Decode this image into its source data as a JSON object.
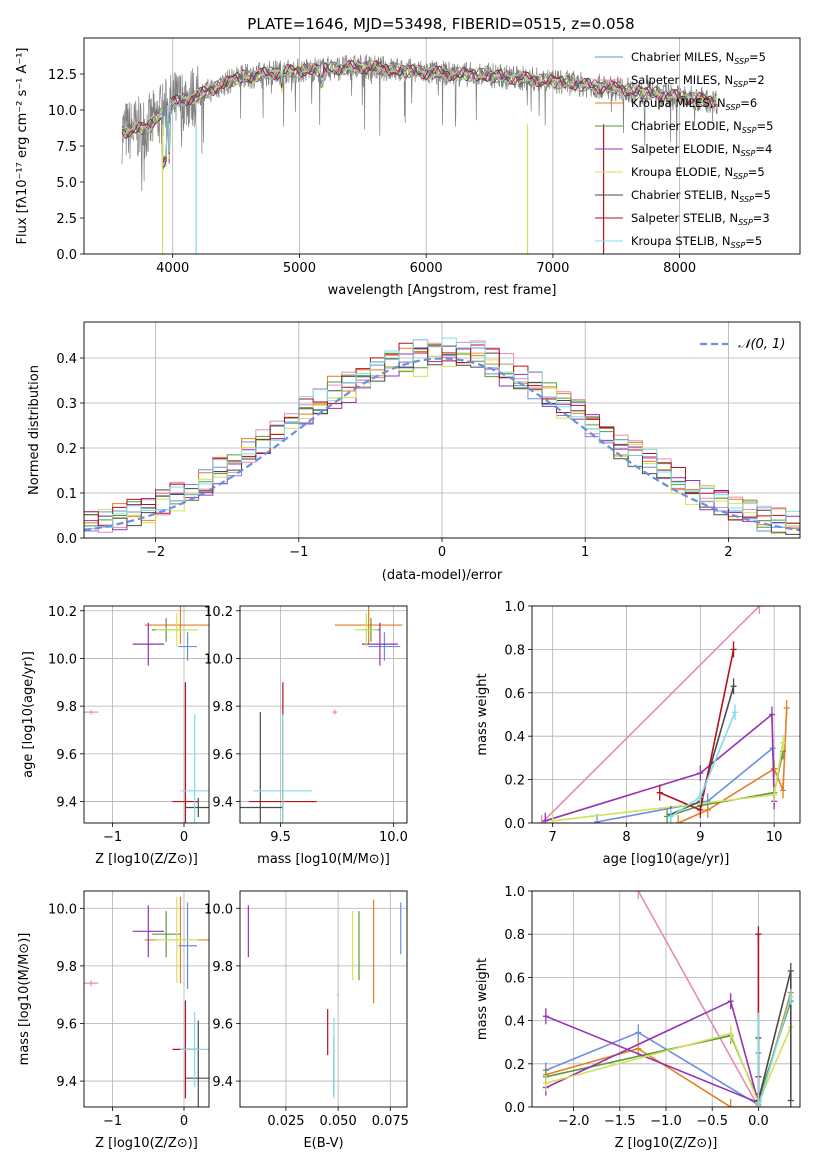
{
  "figure_title": "PLATE=1646, MJD=53498, FIBERID=0515, z=0.058",
  "colors": {
    "Chabrier MILES": "#6a8fdf",
    "Salpeter MILES": "#e88aba",
    "Kroupa MILES": "#e67e22",
    "Chabrier ELODIE": "#5b9a3c",
    "Salpeter ELODIE": "#9433b3",
    "Kroupa ELODIE": "#d4e05a",
    "Chabrier STELIB": "#4a4a4a",
    "Salpeter STELIB": "#b5121b",
    "Kroupa STELIB": "#80dce6",
    "data": "#808080"
  },
  "chart_data": [
    {
      "type": "line",
      "title": "PLATE=1646, MJD=53498, FIBERID=0515, z=0.058",
      "xlabel": "wavelength [Angstrom, rest frame]",
      "ylabel": "Flux [fλ10⁻¹⁷ erg cm⁻² s⁻¹ A⁻¹]",
      "xlim": [
        3300,
        8950
      ],
      "ylim": [
        0,
        15
      ],
      "xticks": [
        "4000",
        "5000",
        "6000",
        "7000",
        "8000"
      ],
      "yticks": [
        "0.0",
        "2.5",
        "5.0",
        "7.5",
        "10.0",
        "12.5"
      ],
      "legend_position": "upper-right",
      "series": [
        {
          "name": "Chabrier MILES, N_SSP=5",
          "label_main": "Chabrier MILES, N",
          "label_sub": "SSP",
          "label_end": "=5"
        },
        {
          "name": "Salpeter MILES, N_SSP=2",
          "label_main": "Salpeter MILES, N",
          "label_sub": "SSP",
          "label_end": "=2"
        },
        {
          "name": "Kroupa MILES, N_SSP=6",
          "label_main": "Kroupa MILES, N",
          "label_sub": "SSP",
          "label_end": "=6"
        },
        {
          "name": "Chabrier ELODIE, N_SSP=5",
          "label_main": "Chabrier ELODIE, N",
          "label_sub": "SSP",
          "label_end": "=5"
        },
        {
          "name": "Salpeter ELODIE, N_SSP=4",
          "label_main": "Salpeter ELODIE, N",
          "label_sub": "SSP",
          "label_end": "=4"
        },
        {
          "name": "Kroupa ELODIE, N_SSP=5",
          "label_main": "Kroupa ELODIE, N",
          "label_sub": "SSP",
          "label_end": "=5"
        },
        {
          "name": "Chabrier STELIB, N_SSP=5",
          "label_main": "Chabrier STELIB, N",
          "label_sub": "SSP",
          "label_end": "=5"
        },
        {
          "name": "Salpeter STELIB, N_SSP=3",
          "label_main": "Salpeter STELIB, N",
          "label_sub": "SSP",
          "label_end": "=3"
        },
        {
          "name": "Kroupa STELIB, N_SSP=5",
          "label_main": "Kroupa STELIB, N",
          "label_sub": "SSP",
          "label_end": "=5"
        }
      ],
      "spectrum_shape": {
        "x": [
          3600,
          3800,
          4000,
          4200,
          4500,
          4800,
          5100,
          5500,
          6000,
          6500,
          7000,
          7500,
          8000,
          8300
        ],
        "y": [
          8.5,
          8.8,
          10.5,
          11.0,
          12.2,
          12.6,
          12.8,
          13.0,
          12.6,
          12.4,
          12.0,
          11.5,
          10.9,
          10.6
        ]
      }
    },
    {
      "type": "bar",
      "title": "",
      "xlabel": "(data-model)/error",
      "ylabel": "Normed distribution",
      "xlim": [
        -2.5,
        2.5
      ],
      "ylim": [
        0,
        0.48
      ],
      "xticks": [
        "−2",
        "−1",
        "0",
        "1",
        "2"
      ],
      "yticks": [
        "0.0",
        "0.1",
        "0.2",
        "0.3",
        "0.4"
      ],
      "legend_position": "upper-right",
      "legend_label": "𝒩(0, 1)",
      "bin_width": 0.1,
      "series_note": "one step histogram per SSP model, 50 bins from -2.5 to 2.5"
    },
    {
      "type": "scatter",
      "xlabel": "Z [log10(Z/Z⊙)]",
      "ylabel": "age  [log10(age/yr)]",
      "xlim": [
        -1.4,
        0.35
      ],
      "ylim": [
        9.31,
        10.22
      ],
      "xticks": [
        "−1",
        "0"
      ],
      "yticks": [
        "9.4",
        "9.6",
        "9.8",
        "10.0",
        "10.2"
      ],
      "points": [
        {
          "model": "Chabrier MILES",
          "x": 0.05,
          "y": 10.05,
          "xerr": 0.13,
          "yerr": 0.06
        },
        {
          "model": "Salpeter MILES",
          "x": -1.3,
          "y": 9.775,
          "xerr": 0.1,
          "yerr": 0.01
        },
        {
          "model": "Kroupa MILES",
          "x": -0.05,
          "y": 10.14,
          "xerr": 0.5,
          "yerr": 0.08
        },
        {
          "model": "Chabrier ELODIE",
          "x": -0.25,
          "y": 10.12,
          "xerr": 0.2,
          "yerr": 0.05
        },
        {
          "model": "Salpeter ELODIE",
          "x": -0.5,
          "y": 10.06,
          "xerr": 0.22,
          "yerr": 0.09
        },
        {
          "model": "Kroupa ELODIE",
          "x": -0.1,
          "y": 10.12,
          "xerr": 0.3,
          "yerr": 0.07
        },
        {
          "model": "Chabrier STELIB",
          "x": 0.2,
          "y": 9.375,
          "xerr": 0.18,
          "yerr": 0.04
        },
        {
          "model": "Salpeter STELIB",
          "x": 0.02,
          "y": 9.4,
          "xerr": 0.18,
          "yerr": 0.5
        },
        {
          "model": "Kroupa STELIB",
          "x": 0.15,
          "y": 9.445,
          "xerr": 0.2,
          "yerr": 0.32
        }
      ]
    },
    {
      "type": "scatter",
      "xlabel": "mass [log10(M/M⊙)]",
      "ylabel": "",
      "xlim": [
        9.32,
        10.06
      ],
      "ylim": [
        9.31,
        10.22
      ],
      "xticks": [
        "9.5",
        "10.0"
      ],
      "yticks": [
        "9.4",
        "9.6",
        "9.8",
        "10.0",
        "10.2"
      ],
      "points": [
        {
          "model": "Chabrier MILES",
          "x": 9.96,
          "y": 10.05,
          "xerr": 0.07,
          "yerr": 0.06
        },
        {
          "model": "Salpeter MILES",
          "x": 9.74,
          "y": 9.775,
          "xerr": 0.01,
          "yerr": 0.01
        },
        {
          "model": "Kroupa MILES",
          "x": 9.89,
          "y": 10.14,
          "xerr": 0.15,
          "yerr": 0.08
        },
        {
          "model": "Chabrier ELODIE",
          "x": 9.9,
          "y": 10.12,
          "xerr": 0.04,
          "yerr": 0.05
        },
        {
          "model": "Salpeter ELODIE",
          "x": 9.94,
          "y": 10.06,
          "xerr": 0.08,
          "yerr": 0.09
        },
        {
          "model": "Kroupa ELODIE",
          "x": 9.88,
          "y": 10.12,
          "xerr": 0.05,
          "yerr": 0.07
        },
        {
          "model": "Chabrier STELIB",
          "x": 9.41,
          "y": 9.375,
          "xerr": 0.1,
          "yerr": 0.4
        },
        {
          "model": "Salpeter STELIB",
          "x": 9.51,
          "y": 9.4,
          "xerr": 0.15,
          "yerr": 0.5
        },
        {
          "model": "Kroupa STELIB",
          "x": 9.51,
          "y": 9.445,
          "xerr": 0.13,
          "yerr": 0.32
        }
      ]
    },
    {
      "type": "line",
      "xlabel": "age  [log10(age/yr)]",
      "ylabel": "mass weight",
      "xlim": [
        6.72,
        10.35
      ],
      "ylim": [
        0,
        1.0
      ],
      "xticks": [
        "7",
        "8",
        "9",
        "10"
      ],
      "yticks": [
        "0.0",
        "0.2",
        "0.4",
        "0.6",
        "0.8",
        "1.0"
      ],
      "series": [
        {
          "name": "Chabrier MILES",
          "x": [
            7.6,
            9.1,
            9.98,
            10.0
          ],
          "y": [
            0.005,
            0.1,
            0.345,
            0.25
          ]
        },
        {
          "name": "Salpeter MILES",
          "x": [
            6.85,
            9.8
          ],
          "y": [
            0.0,
            1.0
          ]
        },
        {
          "name": "Kroupa MILES",
          "x": [
            8.7,
            9.1,
            10.0,
            10.12,
            10.17
          ],
          "y": [
            0.0,
            0.06,
            0.25,
            0.15,
            0.53
          ]
        },
        {
          "name": "Chabrier ELODIE",
          "x": [
            8.55,
            9.0,
            10.0,
            10.12
          ],
          "y": [
            0.03,
            0.08,
            0.14,
            0.33
          ]
        },
        {
          "name": "Salpeter ELODIE",
          "x": [
            6.9,
            9.0,
            9.97,
            10.0
          ],
          "y": [
            0.01,
            0.23,
            0.5,
            0.1
          ]
        },
        {
          "name": "Kroupa ELODIE",
          "x": [
            7.0,
            9.0,
            10.0,
            10.12
          ],
          "y": [
            0.01,
            0.09,
            0.13,
            0.37
          ]
        },
        {
          "name": "Chabrier STELIB",
          "x": [
            8.6,
            9.0,
            9.45
          ],
          "y": [
            0.04,
            0.1,
            0.63
          ]
        },
        {
          "name": "Salpeter STELIB",
          "x": [
            8.45,
            9.0,
            9.45
          ],
          "y": [
            0.14,
            0.06,
            0.8
          ]
        },
        {
          "name": "Kroupa STELIB",
          "x": [
            8.6,
            9.0,
            9.47
          ],
          "y": [
            0.03,
            0.12,
            0.51
          ]
        }
      ]
    },
    {
      "type": "scatter",
      "xlabel": "Z [log10(Z/Z⊙)]",
      "ylabel": "mass [log10(M/M⊙)]",
      "xlim": [
        -1.4,
        0.35
      ],
      "ylim": [
        9.31,
        10.06
      ],
      "xticks": [
        "−1",
        "0"
      ],
      "yticks": [
        "9.4",
        "9.6",
        "9.8",
        "10.0"
      ],
      "points": [
        {
          "model": "Chabrier MILES",
          "x": 0.05,
          "y": 9.87,
          "xerr": 0.13,
          "yerr": 0.15
        },
        {
          "model": "Salpeter MILES",
          "x": -1.3,
          "y": 9.74,
          "xerr": 0.1,
          "yerr": 0.01
        },
        {
          "model": "Kroupa MILES",
          "x": -0.05,
          "y": 9.89,
          "xerr": 0.5,
          "yerr": 0.15
        },
        {
          "model": "Chabrier ELODIE",
          "x": -0.25,
          "y": 9.91,
          "xerr": 0.2,
          "yerr": 0.08
        },
        {
          "model": "Salpeter ELODIE",
          "x": -0.5,
          "y": 9.92,
          "xerr": 0.22,
          "yerr": 0.09
        },
        {
          "model": "Kroupa ELODIE",
          "x": -0.1,
          "y": 9.89,
          "xerr": 0.3,
          "yerr": 0.15
        },
        {
          "model": "Chabrier STELIB",
          "x": 0.2,
          "y": 9.41,
          "xerr": 0.18,
          "yerr": 0.2
        },
        {
          "model": "Salpeter STELIB",
          "x": 0.02,
          "y": 9.51,
          "xerr": 0.18,
          "yerr": 0.17
        },
        {
          "model": "Kroupa STELIB",
          "x": 0.15,
          "y": 9.51,
          "xerr": 0.2,
          "yerr": 0.13
        }
      ]
    },
    {
      "type": "scatter",
      "xlabel": "E(B-V)",
      "ylabel": "",
      "xlim": [
        0.003,
        0.083
      ],
      "ylim": [
        9.31,
        10.06
      ],
      "xticks": [
        "0.025",
        "0.050",
        "0.075"
      ],
      "yticks": [
        "9.4",
        "9.6",
        "9.8",
        "10.0"
      ],
      "points": [
        {
          "model": "Chabrier MILES",
          "x": 0.08,
          "y": 9.93,
          "xerr": 0.0,
          "yerr": 0.09
        },
        {
          "model": "Salpeter MILES",
          "x": 0.05,
          "y": 9.7,
          "xerr": 0.0,
          "yerr": 0.005
        },
        {
          "model": "Kroupa MILES",
          "x": 0.067,
          "y": 9.85,
          "xerr": 0.0,
          "yerr": 0.18
        },
        {
          "model": "Chabrier ELODIE",
          "x": 0.06,
          "y": 9.87,
          "xerr": 0.0,
          "yerr": 0.12
        },
        {
          "model": "Salpeter ELODIE",
          "x": 0.007,
          "y": 9.92,
          "xerr": 0.0,
          "yerr": 0.09
        },
        {
          "model": "Kroupa ELODIE",
          "x": 0.057,
          "y": 9.87,
          "xerr": 0.0,
          "yerr": 0.12
        },
        {
          "model": "Chabrier STELIB",
          "x": 0.048,
          "y": 9.45,
          "xerr": 0.0,
          "yerr": 0.1
        },
        {
          "model": "Salpeter STELIB",
          "x": 0.045,
          "y": 9.57,
          "xerr": 0.0,
          "yerr": 0.08
        },
        {
          "model": "Kroupa STELIB",
          "x": 0.048,
          "y": 9.48,
          "xerr": 0.0,
          "yerr": 0.14
        }
      ]
    },
    {
      "type": "line",
      "xlabel": "Z [log10(Z/Z⊙)]",
      "ylabel": "mass weight",
      "xlim": [
        -2.45,
        0.45
      ],
      "ylim": [
        0,
        1.0
      ],
      "xticks": [
        "−2.0",
        "−1.5",
        "−1.0",
        "−0.5",
        "0.0"
      ],
      "yticks": [
        "0.0",
        "0.2",
        "0.4",
        "0.6",
        "0.8",
        "1.0"
      ],
      "series": [
        {
          "name": "Chabrier MILES",
          "x": [
            -2.3,
            -1.3,
            0.0,
            0.0
          ],
          "y": [
            0.17,
            0.345,
            0.01,
            0.25
          ]
        },
        {
          "name": "Salpeter MILES",
          "x": [
            -1.3,
            0.0
          ],
          "y": [
            1.0,
            0.0
          ]
        },
        {
          "name": "Kroupa MILES",
          "x": [
            -2.3,
            -1.3,
            -0.3,
            0.0,
            0.35
          ],
          "y": [
            0.15,
            0.27,
            0.0,
            0.0,
            0.53
          ]
        },
        {
          "name": "Chabrier ELODIE",
          "x": [
            -2.3,
            -0.3,
            0.0,
            0.35
          ],
          "y": [
            0.14,
            0.33,
            0.03,
            0.49
          ]
        },
        {
          "name": "Salpeter ELODIE",
          "x": [
            -2.3,
            -0.3,
            0.0,
            -2.3
          ],
          "y": [
            0.09,
            0.49,
            0.02,
            0.42
          ]
        },
        {
          "name": "Kroupa ELODIE",
          "x": [
            -2.3,
            -0.3,
            0.0,
            0.35
          ],
          "y": [
            0.11,
            0.34,
            0.02,
            0.37
          ]
        },
        {
          "name": "Chabrier STELIB",
          "x": [
            0.0,
            0.0,
            0.35,
            0.35
          ],
          "y": [
            0.32,
            0.03,
            0.63,
            0.03
          ]
        },
        {
          "name": "Salpeter STELIB",
          "x": [
            0.0,
            0.0,
            0.0
          ],
          "y": [
            0.8,
            0.06,
            0.14
          ]
        },
        {
          "name": "Kroupa STELIB",
          "x": [
            0.0,
            0.0,
            0.35
          ],
          "y": [
            0.4,
            0.0,
            0.51
          ]
        }
      ]
    }
  ]
}
